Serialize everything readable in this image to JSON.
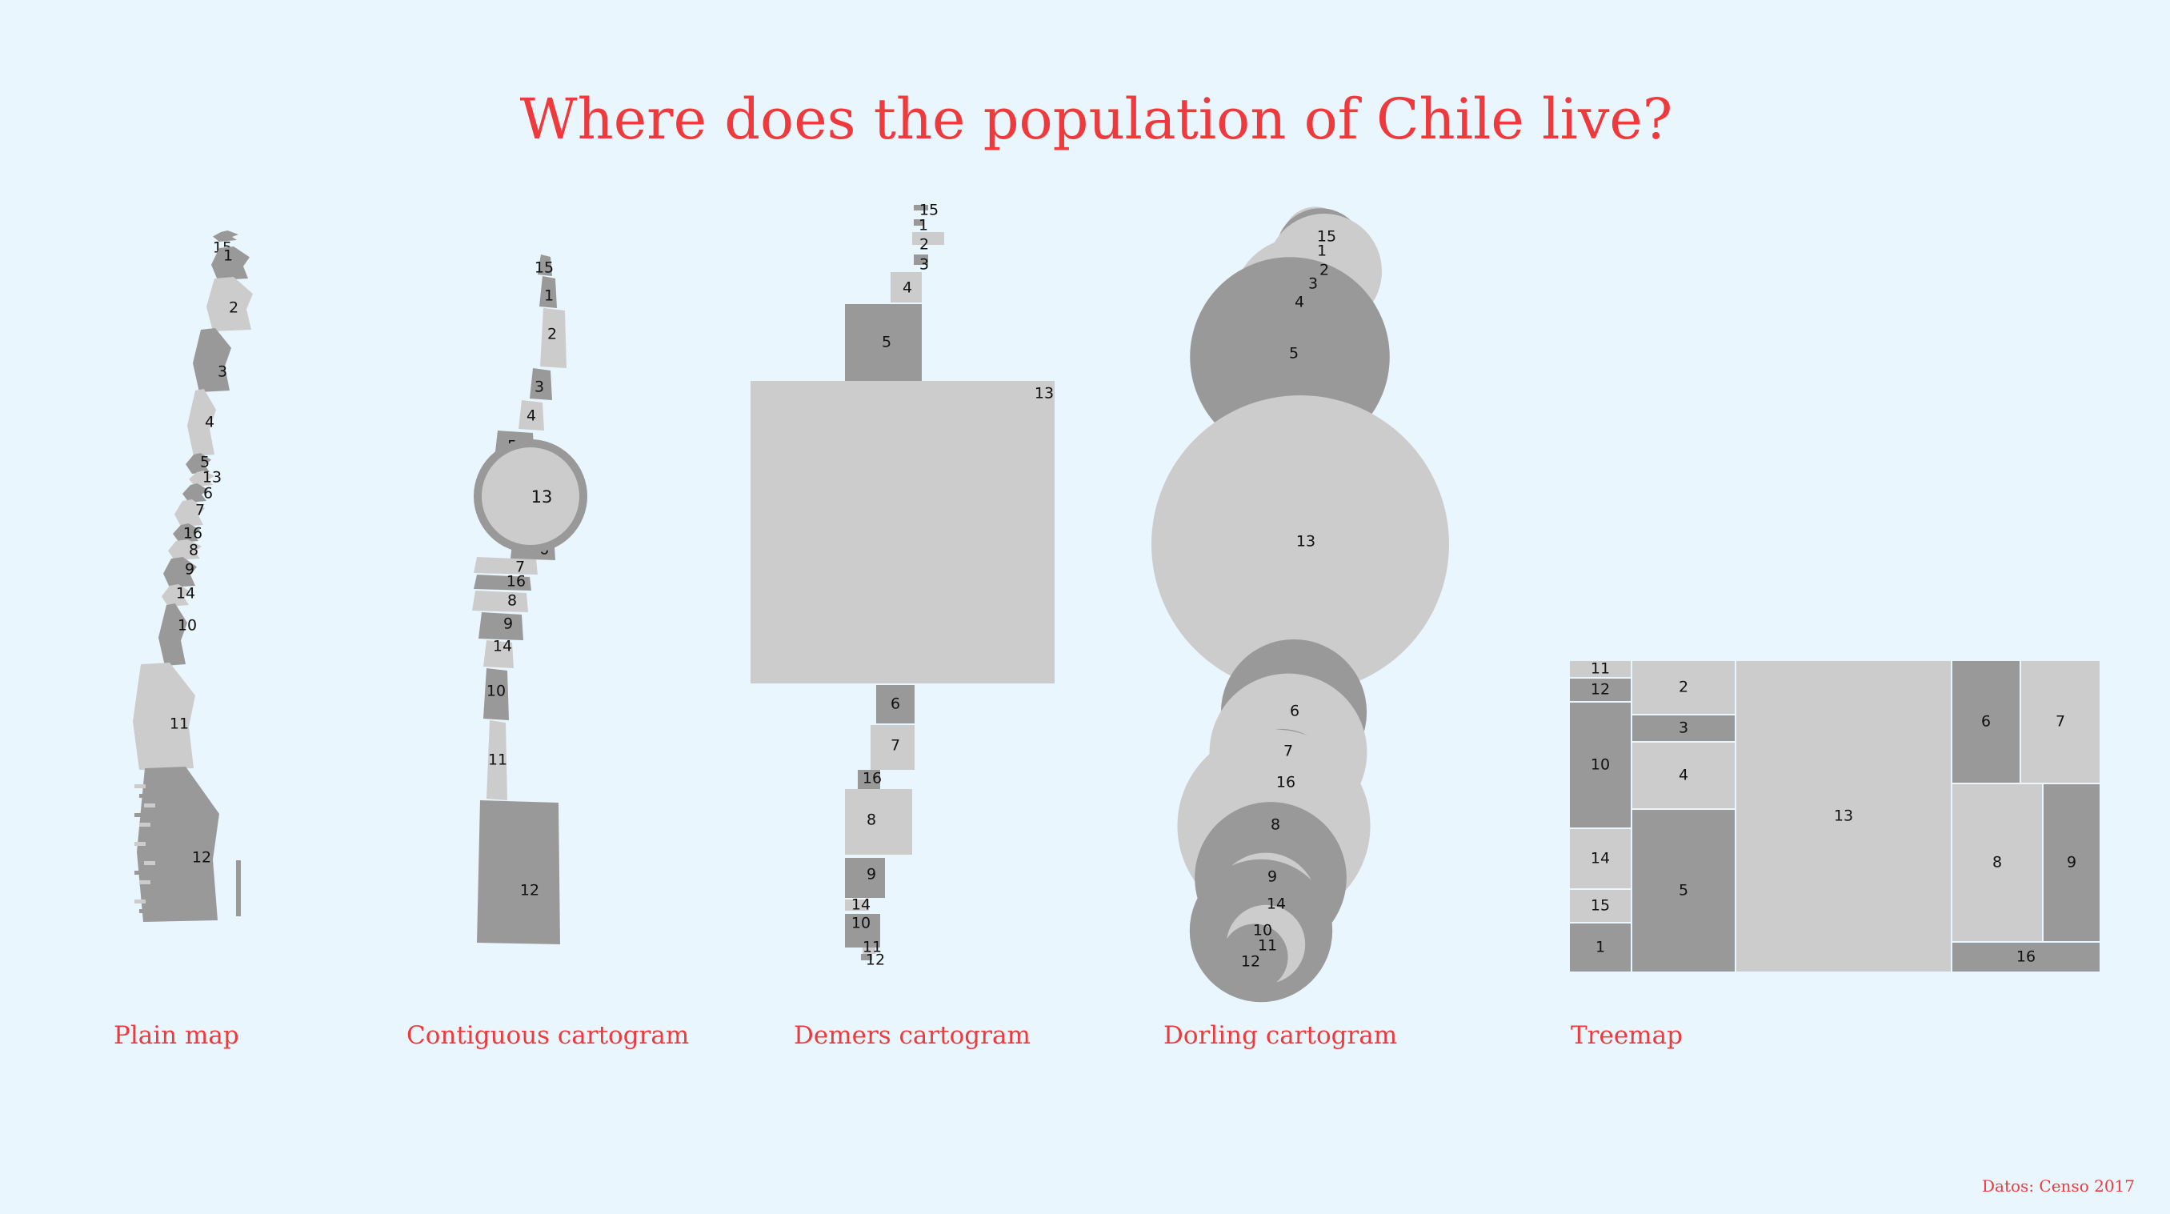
{
  "title": "Where does the population of Chile live?",
  "source": "Datos: Censo 2017",
  "colors": {
    "light": "#cccccc",
    "dark": "#999999",
    "title": "#ef3a3d",
    "background": "#eaf6fd"
  },
  "panels": [
    {
      "label": "Plain map"
    },
    {
      "label": "Contiguous cartogram"
    },
    {
      "label": "Demers cartogram"
    },
    {
      "label": "Dorling cartogram"
    },
    {
      "label": "Treemap"
    }
  ],
  "chart_data": [
    {
      "type": "map",
      "title": "Plain map",
      "regions": [
        {
          "id": "15",
          "shade": "dark"
        },
        {
          "id": "1",
          "shade": "dark"
        },
        {
          "id": "2",
          "shade": "light"
        },
        {
          "id": "3",
          "shade": "dark"
        },
        {
          "id": "4",
          "shade": "light"
        },
        {
          "id": "5",
          "shade": "dark"
        },
        {
          "id": "13",
          "shade": "light"
        },
        {
          "id": "6",
          "shade": "dark"
        },
        {
          "id": "7",
          "shade": "light"
        },
        {
          "id": "16",
          "shade": "dark"
        },
        {
          "id": "8",
          "shade": "light"
        },
        {
          "id": "9",
          "shade": "dark"
        },
        {
          "id": "14",
          "shade": "light"
        },
        {
          "id": "10",
          "shade": "dark"
        },
        {
          "id": "11",
          "shade": "light"
        },
        {
          "id": "12",
          "shade": "dark"
        }
      ]
    },
    {
      "type": "map",
      "title": "Contiguous cartogram",
      "regions": [
        "15",
        "1",
        "2",
        "3",
        "4",
        "5",
        "13",
        "6",
        "7",
        "16",
        "8",
        "9",
        "14",
        "10",
        "11",
        "12"
      ]
    },
    {
      "type": "squares",
      "title": "Demers cartogram",
      "regions": [
        {
          "id": "15",
          "size": 0.08,
          "shade": "dark"
        },
        {
          "id": "1",
          "size": 0.09,
          "shade": "dark"
        },
        {
          "id": "2",
          "size": 0.15,
          "shade": "light"
        },
        {
          "id": "3",
          "size": 0.12,
          "shade": "dark"
        },
        {
          "id": "4",
          "size": 0.19,
          "shade": "light"
        },
        {
          "id": "5",
          "size": 0.44,
          "shade": "dark"
        },
        {
          "id": "13",
          "size": 1.0,
          "shade": "light"
        },
        {
          "id": "6",
          "size": 0.23,
          "shade": "dark"
        },
        {
          "id": "7",
          "size": 0.28,
          "shade": "light"
        },
        {
          "id": "16",
          "size": 0.12,
          "shade": "dark"
        },
        {
          "id": "8",
          "size": 0.38,
          "shade": "light"
        },
        {
          "id": "9",
          "size": 0.26,
          "shade": "dark"
        },
        {
          "id": "14",
          "size": 0.11,
          "shade": "light"
        },
        {
          "id": "10",
          "size": 0.23,
          "shade": "dark"
        },
        {
          "id": "11",
          "size": 0.06,
          "shade": "light"
        },
        {
          "id": "12",
          "size": 0.07,
          "shade": "dark"
        }
      ]
    },
    {
      "type": "bubbles",
      "title": "Dorling cartogram",
      "regions": [
        {
          "id": "15",
          "size": 0.05,
          "shade": "light"
        },
        {
          "id": "1",
          "size": 0.09,
          "shade": "dark"
        },
        {
          "id": "2",
          "size": 0.15,
          "shade": "light"
        },
        {
          "id": "3",
          "size": 0.07,
          "shade": "dark"
        },
        {
          "id": "4",
          "size": 0.2,
          "shade": "light"
        },
        {
          "id": "5",
          "size": 0.45,
          "shade": "dark"
        },
        {
          "id": "13",
          "size": 1.0,
          "shade": "light"
        },
        {
          "id": "6",
          "size": 0.24,
          "shade": "dark"
        },
        {
          "id": "7",
          "size": 0.28,
          "shade": "light"
        },
        {
          "id": "16",
          "size": 0.13,
          "shade": "dark"
        },
        {
          "id": "8",
          "size": 0.42,
          "shade": "light"
        },
        {
          "id": "9",
          "size": 0.26,
          "shade": "dark"
        },
        {
          "id": "14",
          "size": 0.12,
          "shade": "light"
        },
        {
          "id": "10",
          "size": 0.23,
          "shade": "dark"
        },
        {
          "id": "11",
          "size": 0.07,
          "shade": "light"
        },
        {
          "id": "12",
          "size": 0.05,
          "shade": "dark"
        }
      ]
    },
    {
      "type": "treemap",
      "title": "Treemap",
      "regions": [
        {
          "id": "11",
          "shade": "light"
        },
        {
          "id": "12",
          "shade": "dark"
        },
        {
          "id": "10",
          "shade": "dark"
        },
        {
          "id": "14",
          "shade": "light"
        },
        {
          "id": "15",
          "shade": "light"
        },
        {
          "id": "1",
          "shade": "dark"
        },
        {
          "id": "2",
          "shade": "light"
        },
        {
          "id": "3",
          "shade": "dark"
        },
        {
          "id": "4",
          "shade": "light"
        },
        {
          "id": "5",
          "shade": "dark"
        },
        {
          "id": "13",
          "shade": "light"
        },
        {
          "id": "6",
          "shade": "dark"
        },
        {
          "id": "7",
          "shade": "light"
        },
        {
          "id": "8",
          "shade": "light"
        },
        {
          "id": "9",
          "shade": "dark"
        },
        {
          "id": "16",
          "shade": "dark"
        }
      ]
    }
  ]
}
